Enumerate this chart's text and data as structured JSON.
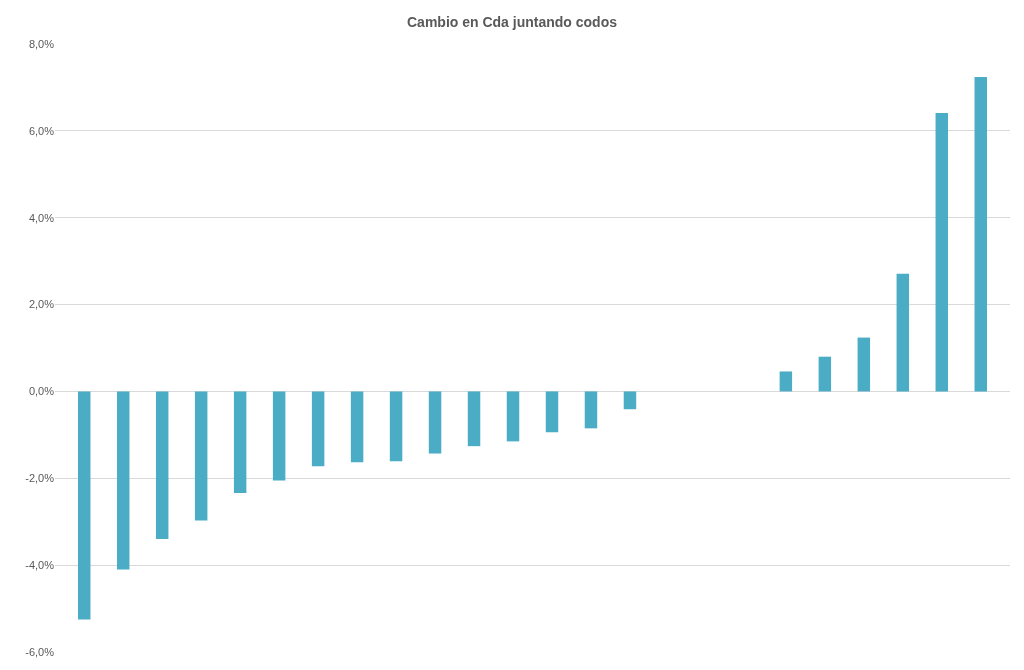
{
  "chart_data": {
    "type": "bar",
    "title": "Cambio en Cda juntando codos",
    "categories": [
      null,
      null,
      null,
      null,
      null,
      null,
      null,
      null,
      null,
      null,
      null,
      null,
      null,
      null,
      null,
      null,
      null,
      null,
      null,
      null,
      null,
      null,
      null,
      null
    ],
    "values": [
      -5.25,
      -4.1,
      -3.4,
      -2.97,
      -2.34,
      -2.05,
      -1.72,
      -1.63,
      -1.61,
      -1.43,
      -1.26,
      -1.15,
      -0.94,
      -0.85,
      -0.41,
      null,
      null,
      null,
      0.46,
      0.8,
      1.24,
      2.71,
      6.41,
      7.24
    ],
    "color": "#4bacc6",
    "ylim": [
      -6,
      8
    ],
    "yticks": [
      {
        "value": -6,
        "label": "-6,0%"
      },
      {
        "value": -4,
        "label": "-4,0%"
      },
      {
        "value": -2,
        "label": "-2,0%"
      },
      {
        "value": 0,
        "label": "0,0%"
      },
      {
        "value": 2,
        "label": "2,0%"
      },
      {
        "value": 4,
        "label": "4,0%"
      },
      {
        "value": 6,
        "label": "6,0%"
      },
      {
        "value": 8,
        "label": "8,0%"
      }
    ],
    "grid": "y"
  }
}
